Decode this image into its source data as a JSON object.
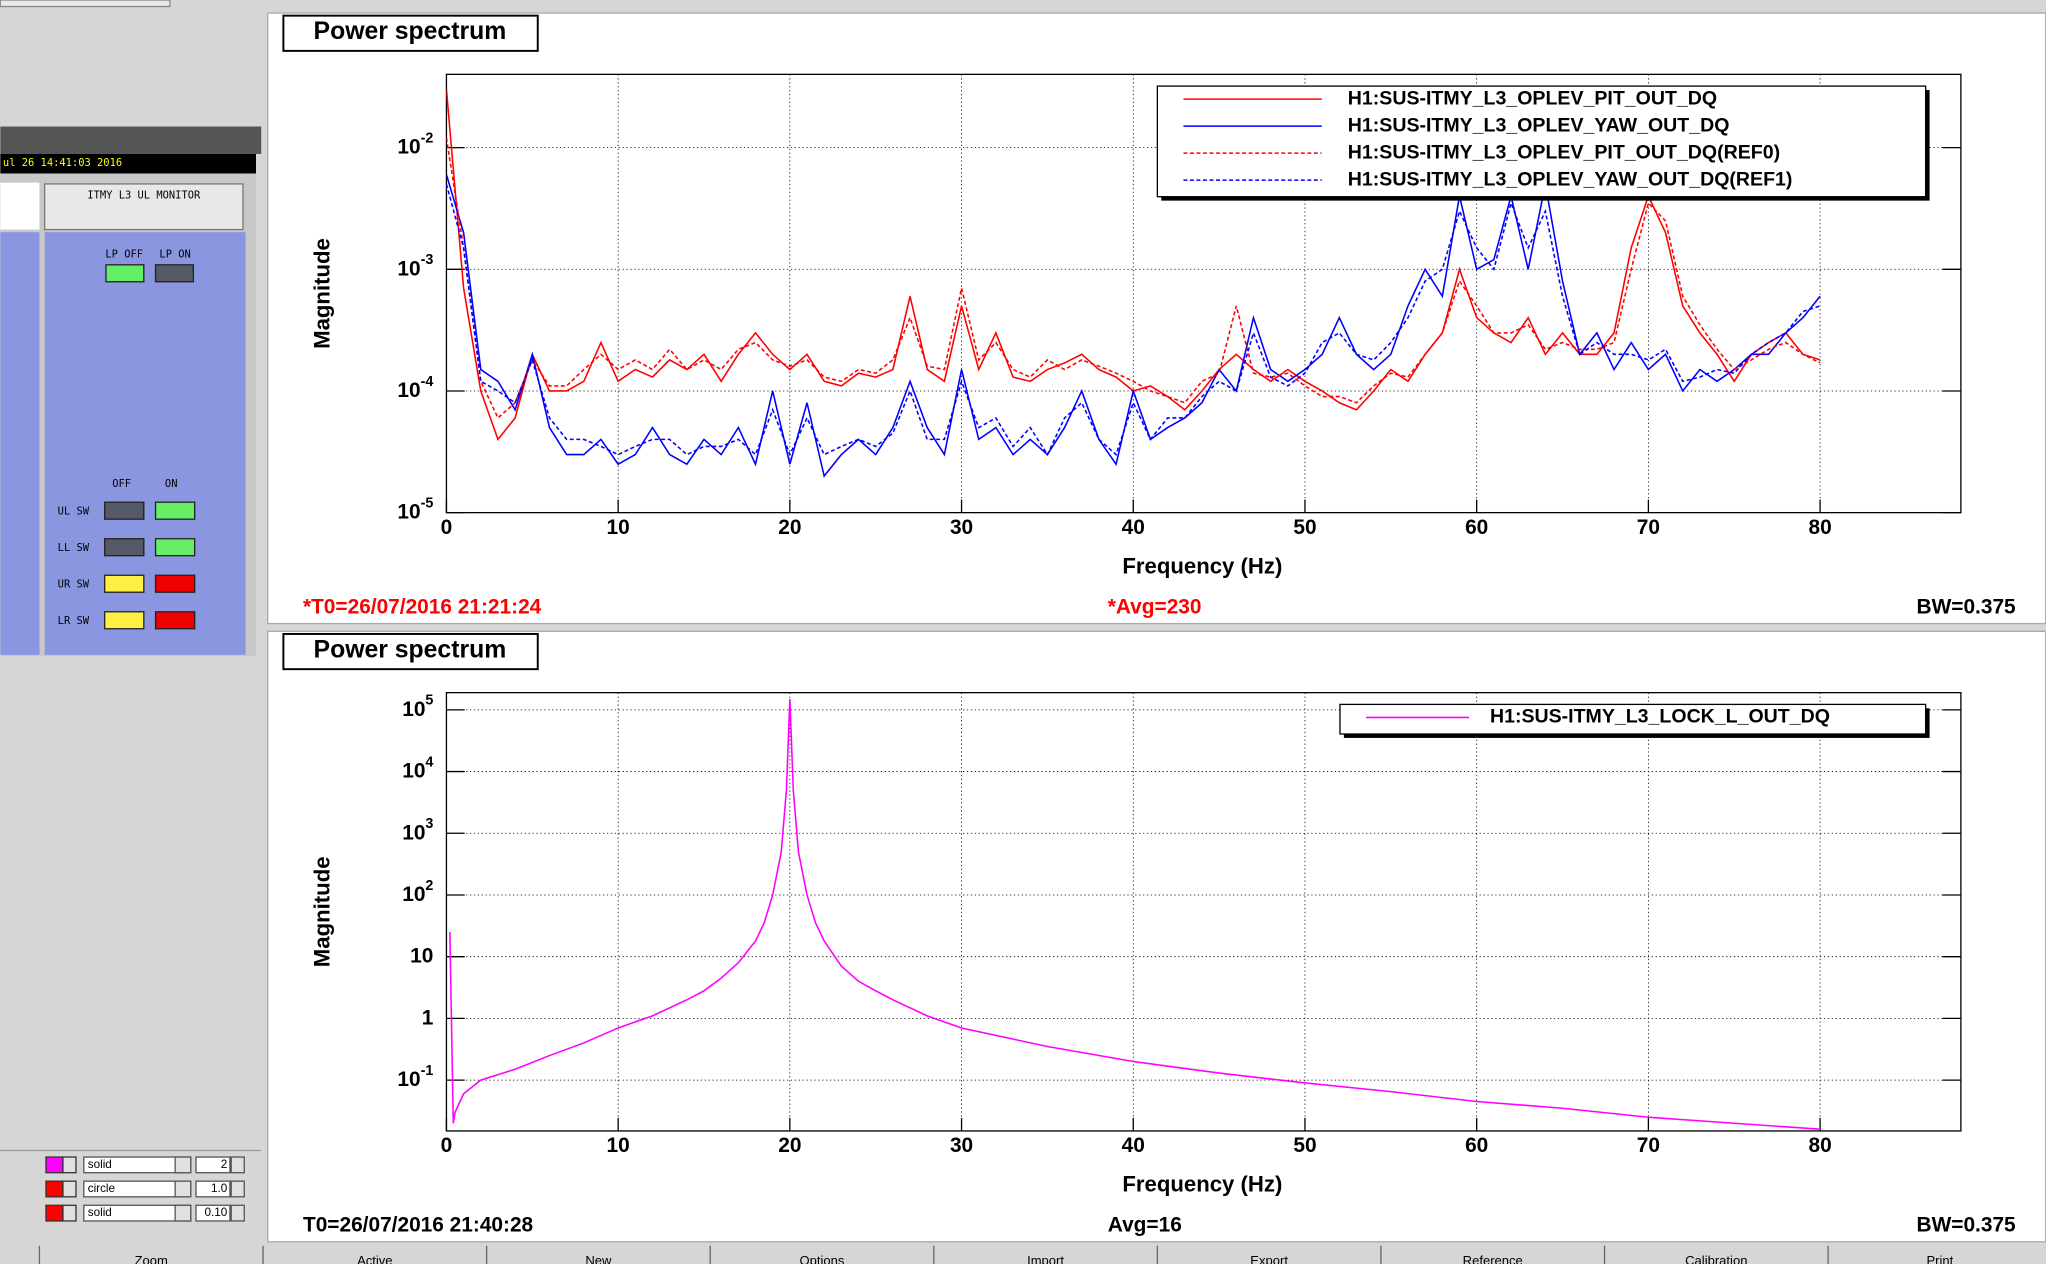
{
  "sidebar": {
    "timestamp": "ul 26 14:41:03 2016",
    "monitor_title": "ITMY L3 UL MONITOR",
    "lp_off": "LP OFF",
    "lp_on": "LP ON",
    "off": "OFF",
    "on": "ON",
    "rows": [
      "UL SW",
      "LL SW",
      "UR SW",
      "LR SW"
    ]
  },
  "style_rows": [
    {
      "style": "solid",
      "value": "2"
    },
    {
      "style": "circle",
      "value": "1.0"
    },
    {
      "style": "solid",
      "value": "0.10"
    }
  ],
  "buttons": [
    "Zoom",
    "Active",
    "New",
    "Options",
    "Import",
    "Export",
    "Reference",
    "Calibration",
    "Print"
  ],
  "chart_data": [
    {
      "type": "line",
      "title": "Power spectrum",
      "x_label": "Frequency (Hz)",
      "y_label": "Magnitude",
      "footer": [
        "*T0=26/07/2016 21:21:24",
        "*Avg=230",
        "BW=0.375"
      ],
      "footer_color": "#ff0000",
      "y_log": true,
      "grid": true,
      "legend": "top right",
      "xlim": [
        0,
        88.2
      ],
      "xticks": [
        0,
        10,
        20,
        30,
        40,
        50,
        60,
        70,
        80
      ],
      "ylim": [
        1e-05,
        0.04
      ],
      "yticks": [
        {
          "value": 1e-05,
          "label": "10",
          "exponent": "-5"
        },
        {
          "value": 0.0001,
          "label": "10",
          "exponent": "-4"
        },
        {
          "value": 0.001,
          "label": "10",
          "exponent": "-3"
        },
        {
          "value": 0.01,
          "label": "10",
          "exponent": "-2"
        }
      ],
      "x": [
        0,
        1,
        2,
        3,
        4,
        5,
        6,
        7,
        8,
        9,
        10,
        11,
        12,
        13,
        14,
        15,
        16,
        17,
        18,
        19,
        20,
        21,
        22,
        23,
        24,
        25,
        26,
        27,
        28,
        29,
        30,
        31,
        32,
        33,
        34,
        35,
        36,
        37,
        38,
        39,
        40,
        41,
        42,
        43,
        44,
        45,
        46,
        47,
        48,
        49,
        50,
        51,
        52,
        53,
        54,
        55,
        56,
        57,
        58,
        59,
        60,
        61,
        62,
        63,
        64,
        65,
        66,
        67,
        68,
        69,
        70,
        71,
        72,
        73,
        74,
        75,
        76,
        77,
        78,
        79,
        80
      ],
      "series": [
        {
          "name": "H1:SUS-ITMY_L3_OPLEV_PIT_OUT_DQ",
          "color": "#ff0000",
          "dashed": false,
          "values": [
            0.03,
            0.0007,
            0.0001,
            4e-05,
            6e-05,
            0.0002,
            0.0001,
            0.0001,
            0.00012,
            0.00025,
            0.00012,
            0.00015,
            0.00013,
            0.00018,
            0.00015,
            0.0002,
            0.00012,
            0.0002,
            0.0003,
            0.0002,
            0.00015,
            0.0002,
            0.00012,
            0.00011,
            0.00014,
            0.00013,
            0.00015,
            0.0006,
            0.00015,
            0.00012,
            0.0005,
            0.00015,
            0.0003,
            0.00013,
            0.00012,
            0.00015,
            0.00017,
            0.0002,
            0.00015,
            0.00013,
            0.0001,
            0.00011,
            9e-05,
            7e-05,
            0.0001,
            0.00015,
            0.0002,
            0.00015,
            0.00012,
            0.00015,
            0.00012,
            0.0001,
            8e-05,
            7e-05,
            0.0001,
            0.00015,
            0.00012,
            0.0002,
            0.0003,
            0.001,
            0.0004,
            0.0003,
            0.00025,
            0.0004,
            0.0002,
            0.0003,
            0.0002,
            0.0002,
            0.0003,
            0.0015,
            0.004,
            0.002,
            0.0005,
            0.0003,
            0.0002,
            0.00012,
            0.0002,
            0.00025,
            0.0003,
            0.0002,
            0.00018
          ]
        },
        {
          "name": "H1:SUS-ITMY_L3_OPLEV_YAW_OUT_DQ",
          "color": "#0000ff",
          "dashed": false,
          "values": [
            0.006,
            0.002,
            0.00015,
            0.00012,
            7e-05,
            0.0002,
            5e-05,
            3e-05,
            3e-05,
            4e-05,
            2.5e-05,
            3e-05,
            5e-05,
            3e-05,
            2.5e-05,
            4e-05,
            3e-05,
            5e-05,
            2.5e-05,
            0.0001,
            2.5e-05,
            8e-05,
            2e-05,
            3e-05,
            4e-05,
            3e-05,
            5e-05,
            0.00012,
            5e-05,
            3e-05,
            0.00015,
            4e-05,
            5e-05,
            3e-05,
            4e-05,
            3e-05,
            5e-05,
            0.0001,
            4e-05,
            2.5e-05,
            0.0001,
            4e-05,
            5e-05,
            6e-05,
            8e-05,
            0.00015,
            0.0001,
            0.0004,
            0.00015,
            0.00012,
            0.00015,
            0.0002,
            0.0004,
            0.0002,
            0.00015,
            0.0002,
            0.0005,
            0.001,
            0.0006,
            0.004,
            0.001,
            0.0012,
            0.004,
            0.001,
            0.005,
            0.0008,
            0.0002,
            0.0003,
            0.00015,
            0.00025,
            0.00015,
            0.0002,
            0.0001,
            0.00015,
            0.00012,
            0.00015,
            0.0002,
            0.0002,
            0.0003,
            0.0004,
            0.0006
          ]
        },
        {
          "name": "H1:SUS-ITMY_L3_OPLEV_PIT_OUT_DQ(REF0)",
          "color": "#ff0000",
          "dashed": true,
          "values": [
            0.012,
            0.0015,
            0.00012,
            6e-05,
            8e-05,
            0.00018,
            0.00011,
            0.00011,
            0.00015,
            0.0002,
            0.00015,
            0.00018,
            0.00015,
            0.00022,
            0.00015,
            0.00018,
            0.00015,
            0.00022,
            0.00025,
            0.00018,
            0.00016,
            0.00018,
            0.00013,
            0.00012,
            0.00015,
            0.00014,
            0.00018,
            0.0004,
            0.00016,
            0.00015,
            0.0007,
            0.00018,
            0.00025,
            0.00015,
            0.00013,
            0.00018,
            0.00015,
            0.00018,
            0.00016,
            0.00014,
            0.00012,
            0.0001,
            9e-05,
            8e-05,
            0.00012,
            0.00014,
            0.0005,
            0.00014,
            0.00013,
            0.00014,
            0.00011,
            9e-05,
            9e-05,
            8e-05,
            0.00011,
            0.00014,
            0.00013,
            0.0002,
            0.0003,
            0.0008,
            0.0005,
            0.0003,
            0.0003,
            0.00035,
            0.00022,
            0.00025,
            0.00022,
            0.00022,
            0.00025,
            0.001,
            0.0035,
            0.0025,
            0.0006,
            0.00035,
            0.00022,
            0.00015,
            0.00018,
            0.00022,
            0.00025,
            0.0002,
            0.00017
          ]
        },
        {
          "name": "H1:SUS-ITMY_L3_OPLEV_YAW_OUT_DQ(REF1)",
          "color": "#0000ff",
          "dashed": true,
          "values": [
            0.005,
            0.0015,
            0.00012,
            0.0001,
            8e-05,
            0.00018,
            6e-05,
            4e-05,
            4e-05,
            3.5e-05,
            3e-05,
            3.5e-05,
            4e-05,
            4e-05,
            3e-05,
            3.5e-05,
            3.5e-05,
            4e-05,
            3e-05,
            7e-05,
            3e-05,
            6e-05,
            3e-05,
            3.5e-05,
            4e-05,
            3.5e-05,
            4.5e-05,
            0.0001,
            4e-05,
            4e-05,
            0.00012,
            5e-05,
            6e-05,
            3.5e-05,
            5e-05,
            3e-05,
            6e-05,
            8e-05,
            4e-05,
            3e-05,
            8e-05,
            4e-05,
            6e-05,
            6e-05,
            9e-05,
            0.00012,
            0.0001,
            0.0003,
            0.00013,
            0.00011,
            0.00014,
            0.00025,
            0.0003,
            0.0002,
            0.00018,
            0.00025,
            0.0004,
            0.0008,
            0.001,
            0.003,
            0.0015,
            0.001,
            0.0035,
            0.0015,
            0.003,
            0.0006,
            0.0002,
            0.00025,
            0.0002,
            0.0002,
            0.00018,
            0.00022,
            0.00012,
            0.00013,
            0.00015,
            0.00014,
            0.0002,
            0.00025,
            0.0003,
            0.00045,
            0.0005
          ]
        }
      ]
    },
    {
      "type": "line",
      "title": "Power spectrum",
      "x_label": "Frequency (Hz)",
      "y_label": "Magnitude",
      "footer": [
        "T0=26/07/2016 21:40:28",
        "Avg=16",
        "BW=0.375"
      ],
      "footer_color": "#000000",
      "y_log": true,
      "grid": true,
      "legend": "top right",
      "xlim": [
        0,
        88.2
      ],
      "xticks": [
        0,
        10,
        20,
        30,
        40,
        50,
        60,
        70,
        80
      ],
      "ylim": [
        0.015,
        190000
      ],
      "yticks": [
        {
          "value": 0.1,
          "label": "10",
          "exponent": "-1"
        },
        1,
        10,
        {
          "value": 100,
          "label": "10",
          "exponent": "2"
        },
        {
          "value": 1000,
          "label": "10",
          "exponent": "3"
        },
        {
          "value": 10000,
          "label": "10",
          "exponent": "4"
        },
        {
          "value": 100000,
          "label": "10",
          "exponent": "5"
        }
      ],
      "x": [
        0.2,
        0.4,
        0.5,
        1,
        2,
        4,
        6,
        8,
        10,
        12,
        14,
        15,
        16,
        17,
        18,
        18.5,
        19,
        19.5,
        19.8,
        20,
        20.2,
        20.5,
        21,
        21.5,
        22,
        23,
        24,
        25,
        26,
        28,
        30,
        35,
        40,
        45,
        50,
        55,
        60,
        65,
        70,
        75,
        80
      ],
      "series": [
        {
          "name": "H1:SUS-ITMY_L3_LOCK_L_OUT_DQ",
          "color": "#ff00ff",
          "dashed": false,
          "values": [
            25,
            0.02,
            0.03,
            0.06,
            0.1,
            0.15,
            0.25,
            0.4,
            0.7,
            1.1,
            2,
            2.8,
            4.5,
            8,
            18,
            35,
            100,
            500,
            5000,
            150000,
            5000,
            500,
            100,
            35,
            18,
            7,
            4,
            2.8,
            2,
            1.1,
            0.7,
            0.35,
            0.2,
            0.13,
            0.09,
            0.065,
            0.045,
            0.035,
            0.025,
            0.02,
            0.016
          ]
        }
      ]
    }
  ]
}
